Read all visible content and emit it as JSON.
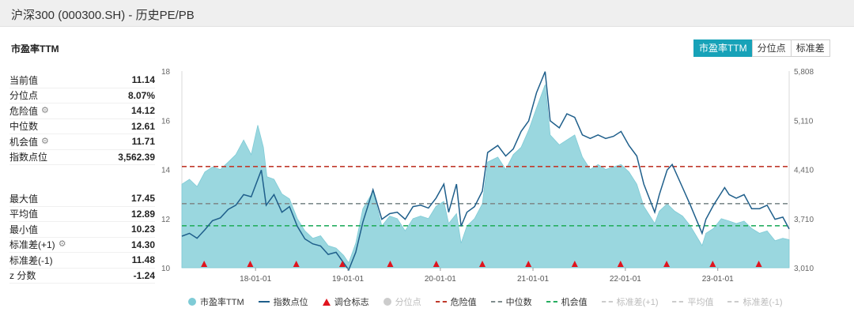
{
  "window": {
    "title": "沪深300 (000300.SH) - 历史PE/PB"
  },
  "section": {
    "title": "市盈率TTM"
  },
  "tabs": [
    {
      "label": "市盈率TTM",
      "active": true
    },
    {
      "label": "分位点",
      "active": false
    },
    {
      "label": "标准差",
      "active": false
    }
  ],
  "stats_top": [
    {
      "label": "当前值",
      "value": "11.14",
      "gear": false
    },
    {
      "label": "分位点",
      "value": "8.07%",
      "gear": false
    },
    {
      "label": "危险值",
      "value": "14.12",
      "gear": true
    },
    {
      "label": "中位数",
      "value": "12.61",
      "gear": false
    },
    {
      "label": "机会值",
      "value": "11.71",
      "gear": true
    },
    {
      "label": "指数点位",
      "value": "3,562.39",
      "gear": false
    }
  ],
  "stats_bottom": [
    {
      "label": "最大值",
      "value": "17.45",
      "gear": false
    },
    {
      "label": "平均值",
      "value": "12.89",
      "gear": false
    },
    {
      "label": "最小值",
      "value": "10.23",
      "gear": false
    },
    {
      "label": "标准差(+1)",
      "value": "14.30",
      "gear": true
    },
    {
      "label": "标准差(-1)",
      "value": "11.48",
      "gear": false
    },
    {
      "label": "z 分数",
      "value": "-1.24",
      "gear": false
    }
  ],
  "colors": {
    "pe_fill": "#8fd3dc",
    "index_line": "#1f5f8b",
    "danger": "#c0392b",
    "median": "#7f8c8d",
    "opportunity": "#27ae60",
    "marker": "#e0141e",
    "accent": "#17a2b8"
  },
  "legend": [
    {
      "label": "市盈率TTM",
      "type": "dot",
      "color": "#7fcbd6",
      "muted": false
    },
    {
      "label": "指数点位",
      "type": "line",
      "color": "#1f5f8b",
      "muted": false
    },
    {
      "label": "调仓标志",
      "type": "triangle",
      "color": "#e0141e",
      "muted": false
    },
    {
      "label": "分位点",
      "type": "dot",
      "color": "#cccccc",
      "muted": true
    },
    {
      "label": "危险值",
      "type": "dash",
      "color": "#c0392b",
      "muted": false
    },
    {
      "label": "中位数",
      "type": "dash",
      "color": "#7f8c8d",
      "muted": false
    },
    {
      "label": "机会值",
      "type": "dash",
      "color": "#27ae60",
      "muted": false
    },
    {
      "label": "标准差(+1)",
      "type": "dash",
      "color": "#cccccc",
      "muted": true
    },
    {
      "label": "平均值",
      "type": "dash",
      "color": "#cccccc",
      "muted": true
    },
    {
      "label": "标准差(-1)",
      "type": "dash",
      "color": "#cccccc",
      "muted": true
    }
  ],
  "chart_data": {
    "type": "area",
    "x_ticks": [
      "18-01-01",
      "19-01-01",
      "20-01-01",
      "21-01-01",
      "22-01-01",
      "23-01-01"
    ],
    "x_range": [
      "2017-03-16",
      "2023-10-10"
    ],
    "y_left": {
      "min": 10,
      "max": 18,
      "ticks": [
        10,
        12,
        14,
        16,
        18
      ]
    },
    "y_right": {
      "min": 3010,
      "max": 5808,
      "ticks": [
        "3,010",
        "3,710",
        "4,410",
        "5,110",
        "5,808"
      ]
    },
    "reference_lines": [
      {
        "name": "危险值",
        "value": 14.12
      },
      {
        "name": "中位数",
        "value": 12.61
      },
      {
        "name": "机会值",
        "value": 11.71
      }
    ],
    "series": [
      {
        "name": "市盈率TTM",
        "axis": "left",
        "points": [
          [
            "2017-03-16",
            13.4
          ],
          [
            "2017-04-15",
            13.6
          ],
          [
            "2017-05-15",
            13.3
          ],
          [
            "2017-06-15",
            13.9
          ],
          [
            "2017-07-15",
            14.1
          ],
          [
            "2017-08-15",
            14.0
          ],
          [
            "2017-09-15",
            14.3
          ],
          [
            "2017-10-15",
            14.6
          ],
          [
            "2017-11-15",
            15.2
          ],
          [
            "2017-12-15",
            14.6
          ],
          [
            "2018-01-10",
            15.8
          ],
          [
            "2018-02-01",
            14.9
          ],
          [
            "2018-02-15",
            13.7
          ],
          [
            "2018-03-15",
            13.6
          ],
          [
            "2018-04-15",
            13.0
          ],
          [
            "2018-05-15",
            12.8
          ],
          [
            "2018-06-15",
            12.0
          ],
          [
            "2018-07-15",
            11.5
          ],
          [
            "2018-08-15",
            11.2
          ],
          [
            "2018-09-15",
            11.3
          ],
          [
            "2018-10-15",
            10.9
          ],
          [
            "2018-11-15",
            10.8
          ],
          [
            "2018-12-15",
            10.5
          ],
          [
            "2019-01-04",
            10.2
          ],
          [
            "2019-02-01",
            11.0
          ],
          [
            "2019-03-01",
            12.4
          ],
          [
            "2019-04-10",
            13.1
          ],
          [
            "2019-05-15",
            11.7
          ],
          [
            "2019-06-15",
            12.1
          ],
          [
            "2019-07-15",
            12.0
          ],
          [
            "2019-08-15",
            11.5
          ],
          [
            "2019-09-15",
            12.0
          ],
          [
            "2019-10-15",
            12.1
          ],
          [
            "2019-11-15",
            12.0
          ],
          [
            "2019-12-15",
            12.5
          ],
          [
            "2020-01-15",
            12.7
          ],
          [
            "2020-02-03",
            11.8
          ],
          [
            "2020-03-05",
            12.2
          ],
          [
            "2020-03-23",
            11.0
          ],
          [
            "2020-04-15",
            11.7
          ],
          [
            "2020-05-15",
            12.0
          ],
          [
            "2020-06-15",
            12.6
          ],
          [
            "2020-07-06",
            14.3
          ],
          [
            "2020-08-15",
            14.5
          ],
          [
            "2020-09-15",
            14.0
          ],
          [
            "2020-10-15",
            14.6
          ],
          [
            "2020-11-15",
            14.9
          ],
          [
            "2020-12-15",
            15.6
          ],
          [
            "2021-01-15",
            16.5
          ],
          [
            "2021-02-18",
            17.45
          ],
          [
            "2021-03-10",
            15.4
          ],
          [
            "2021-04-15",
            15.0
          ],
          [
            "2021-05-15",
            15.2
          ],
          [
            "2021-06-15",
            15.4
          ],
          [
            "2021-07-15",
            14.5
          ],
          [
            "2021-08-15",
            14.0
          ],
          [
            "2021-09-15",
            14.2
          ],
          [
            "2021-10-15",
            14.0
          ],
          [
            "2021-11-15",
            14.1
          ],
          [
            "2021-12-15",
            14.2
          ],
          [
            "2022-01-15",
            13.9
          ],
          [
            "2022-02-15",
            13.4
          ],
          [
            "2022-03-15",
            12.5
          ],
          [
            "2022-04-27",
            11.8
          ],
          [
            "2022-05-15",
            12.3
          ],
          [
            "2022-06-15",
            12.6
          ],
          [
            "2022-07-15",
            12.3
          ],
          [
            "2022-08-15",
            12.1
          ],
          [
            "2022-09-15",
            11.7
          ],
          [
            "2022-10-31",
            10.9
          ],
          [
            "2022-11-15",
            11.4
          ],
          [
            "2022-12-15",
            11.6
          ],
          [
            "2023-01-15",
            12.0
          ],
          [
            "2023-02-15",
            11.9
          ],
          [
            "2023-03-15",
            11.8
          ],
          [
            "2023-04-15",
            11.9
          ],
          [
            "2023-05-15",
            11.6
          ],
          [
            "2023-06-15",
            11.4
          ],
          [
            "2023-07-15",
            11.5
          ],
          [
            "2023-08-15",
            11.1
          ],
          [
            "2023-09-15",
            11.2
          ],
          [
            "2023-10-10",
            11.14
          ]
        ]
      },
      {
        "name": "指数点位",
        "axis": "right",
        "points": [
          [
            "2017-03-16",
            3460
          ],
          [
            "2017-04-15",
            3500
          ],
          [
            "2017-05-15",
            3430
          ],
          [
            "2017-06-15",
            3550
          ],
          [
            "2017-07-15",
            3680
          ],
          [
            "2017-08-15",
            3720
          ],
          [
            "2017-09-15",
            3840
          ],
          [
            "2017-10-15",
            3900
          ],
          [
            "2017-11-15",
            4050
          ],
          [
            "2017-12-15",
            4020
          ],
          [
            "2018-01-24",
            4400
          ],
          [
            "2018-02-12",
            3900
          ],
          [
            "2018-03-15",
            4050
          ],
          [
            "2018-04-15",
            3800
          ],
          [
            "2018-05-15",
            3880
          ],
          [
            "2018-06-15",
            3600
          ],
          [
            "2018-07-15",
            3420
          ],
          [
            "2018-08-15",
            3350
          ],
          [
            "2018-09-15",
            3320
          ],
          [
            "2018-10-15",
            3200
          ],
          [
            "2018-11-15",
            3230
          ],
          [
            "2018-12-15",
            3080
          ],
          [
            "2019-01-04",
            2980
          ],
          [
            "2019-02-01",
            3230
          ],
          [
            "2019-03-01",
            3660
          ],
          [
            "2019-04-10",
            4120
          ],
          [
            "2019-05-15",
            3700
          ],
          [
            "2019-06-15",
            3780
          ],
          [
            "2019-07-15",
            3800
          ],
          [
            "2019-08-15",
            3700
          ],
          [
            "2019-09-15",
            3880
          ],
          [
            "2019-10-15",
            3900
          ],
          [
            "2019-11-15",
            3860
          ],
          [
            "2019-12-15",
            4000
          ],
          [
            "2020-01-15",
            4200
          ],
          [
            "2020-02-03",
            3800
          ],
          [
            "2020-03-05",
            4200
          ],
          [
            "2020-03-23",
            3600
          ],
          [
            "2020-04-15",
            3800
          ],
          [
            "2020-05-15",
            3880
          ],
          [
            "2020-06-15",
            4100
          ],
          [
            "2020-07-06",
            4650
          ],
          [
            "2020-08-15",
            4750
          ],
          [
            "2020-09-15",
            4600
          ],
          [
            "2020-10-15",
            4700
          ],
          [
            "2020-11-15",
            4950
          ],
          [
            "2020-12-15",
            5100
          ],
          [
            "2021-01-15",
            5500
          ],
          [
            "2021-02-18",
            5800
          ],
          [
            "2021-03-10",
            5100
          ],
          [
            "2021-04-15",
            5000
          ],
          [
            "2021-05-15",
            5200
          ],
          [
            "2021-06-15",
            5150
          ],
          [
            "2021-07-15",
            4900
          ],
          [
            "2021-08-15",
            4850
          ],
          [
            "2021-09-15",
            4900
          ],
          [
            "2021-10-15",
            4850
          ],
          [
            "2021-11-15",
            4880
          ],
          [
            "2021-12-15",
            4950
          ],
          [
            "2022-01-15",
            4750
          ],
          [
            "2022-02-15",
            4600
          ],
          [
            "2022-03-15",
            4200
          ],
          [
            "2022-04-27",
            3800
          ],
          [
            "2022-05-15",
            4050
          ],
          [
            "2022-06-15",
            4400
          ],
          [
            "2022-07-05",
            4480
          ],
          [
            "2022-08-15",
            4150
          ],
          [
            "2022-09-15",
            3900
          ],
          [
            "2022-10-31",
            3500
          ],
          [
            "2022-11-15",
            3700
          ],
          [
            "2022-12-15",
            3900
          ],
          [
            "2023-01-28",
            4150
          ],
          [
            "2023-02-15",
            4050
          ],
          [
            "2023-03-15",
            4000
          ],
          [
            "2023-04-15",
            4050
          ],
          [
            "2023-05-15",
            3850
          ],
          [
            "2023-06-15",
            3850
          ],
          [
            "2023-07-15",
            3900
          ],
          [
            "2023-08-15",
            3700
          ],
          [
            "2023-09-15",
            3730
          ],
          [
            "2023-10-10",
            3562
          ]
        ]
      }
    ],
    "rebalance_markers": [
      "2017-06-12",
      "2017-12-11",
      "2018-06-11",
      "2018-12-10",
      "2019-06-17",
      "2019-12-16",
      "2020-06-15",
      "2020-12-14",
      "2021-06-15",
      "2021-12-13",
      "2022-06-13",
      "2022-12-12",
      "2023-06-12"
    ]
  }
}
